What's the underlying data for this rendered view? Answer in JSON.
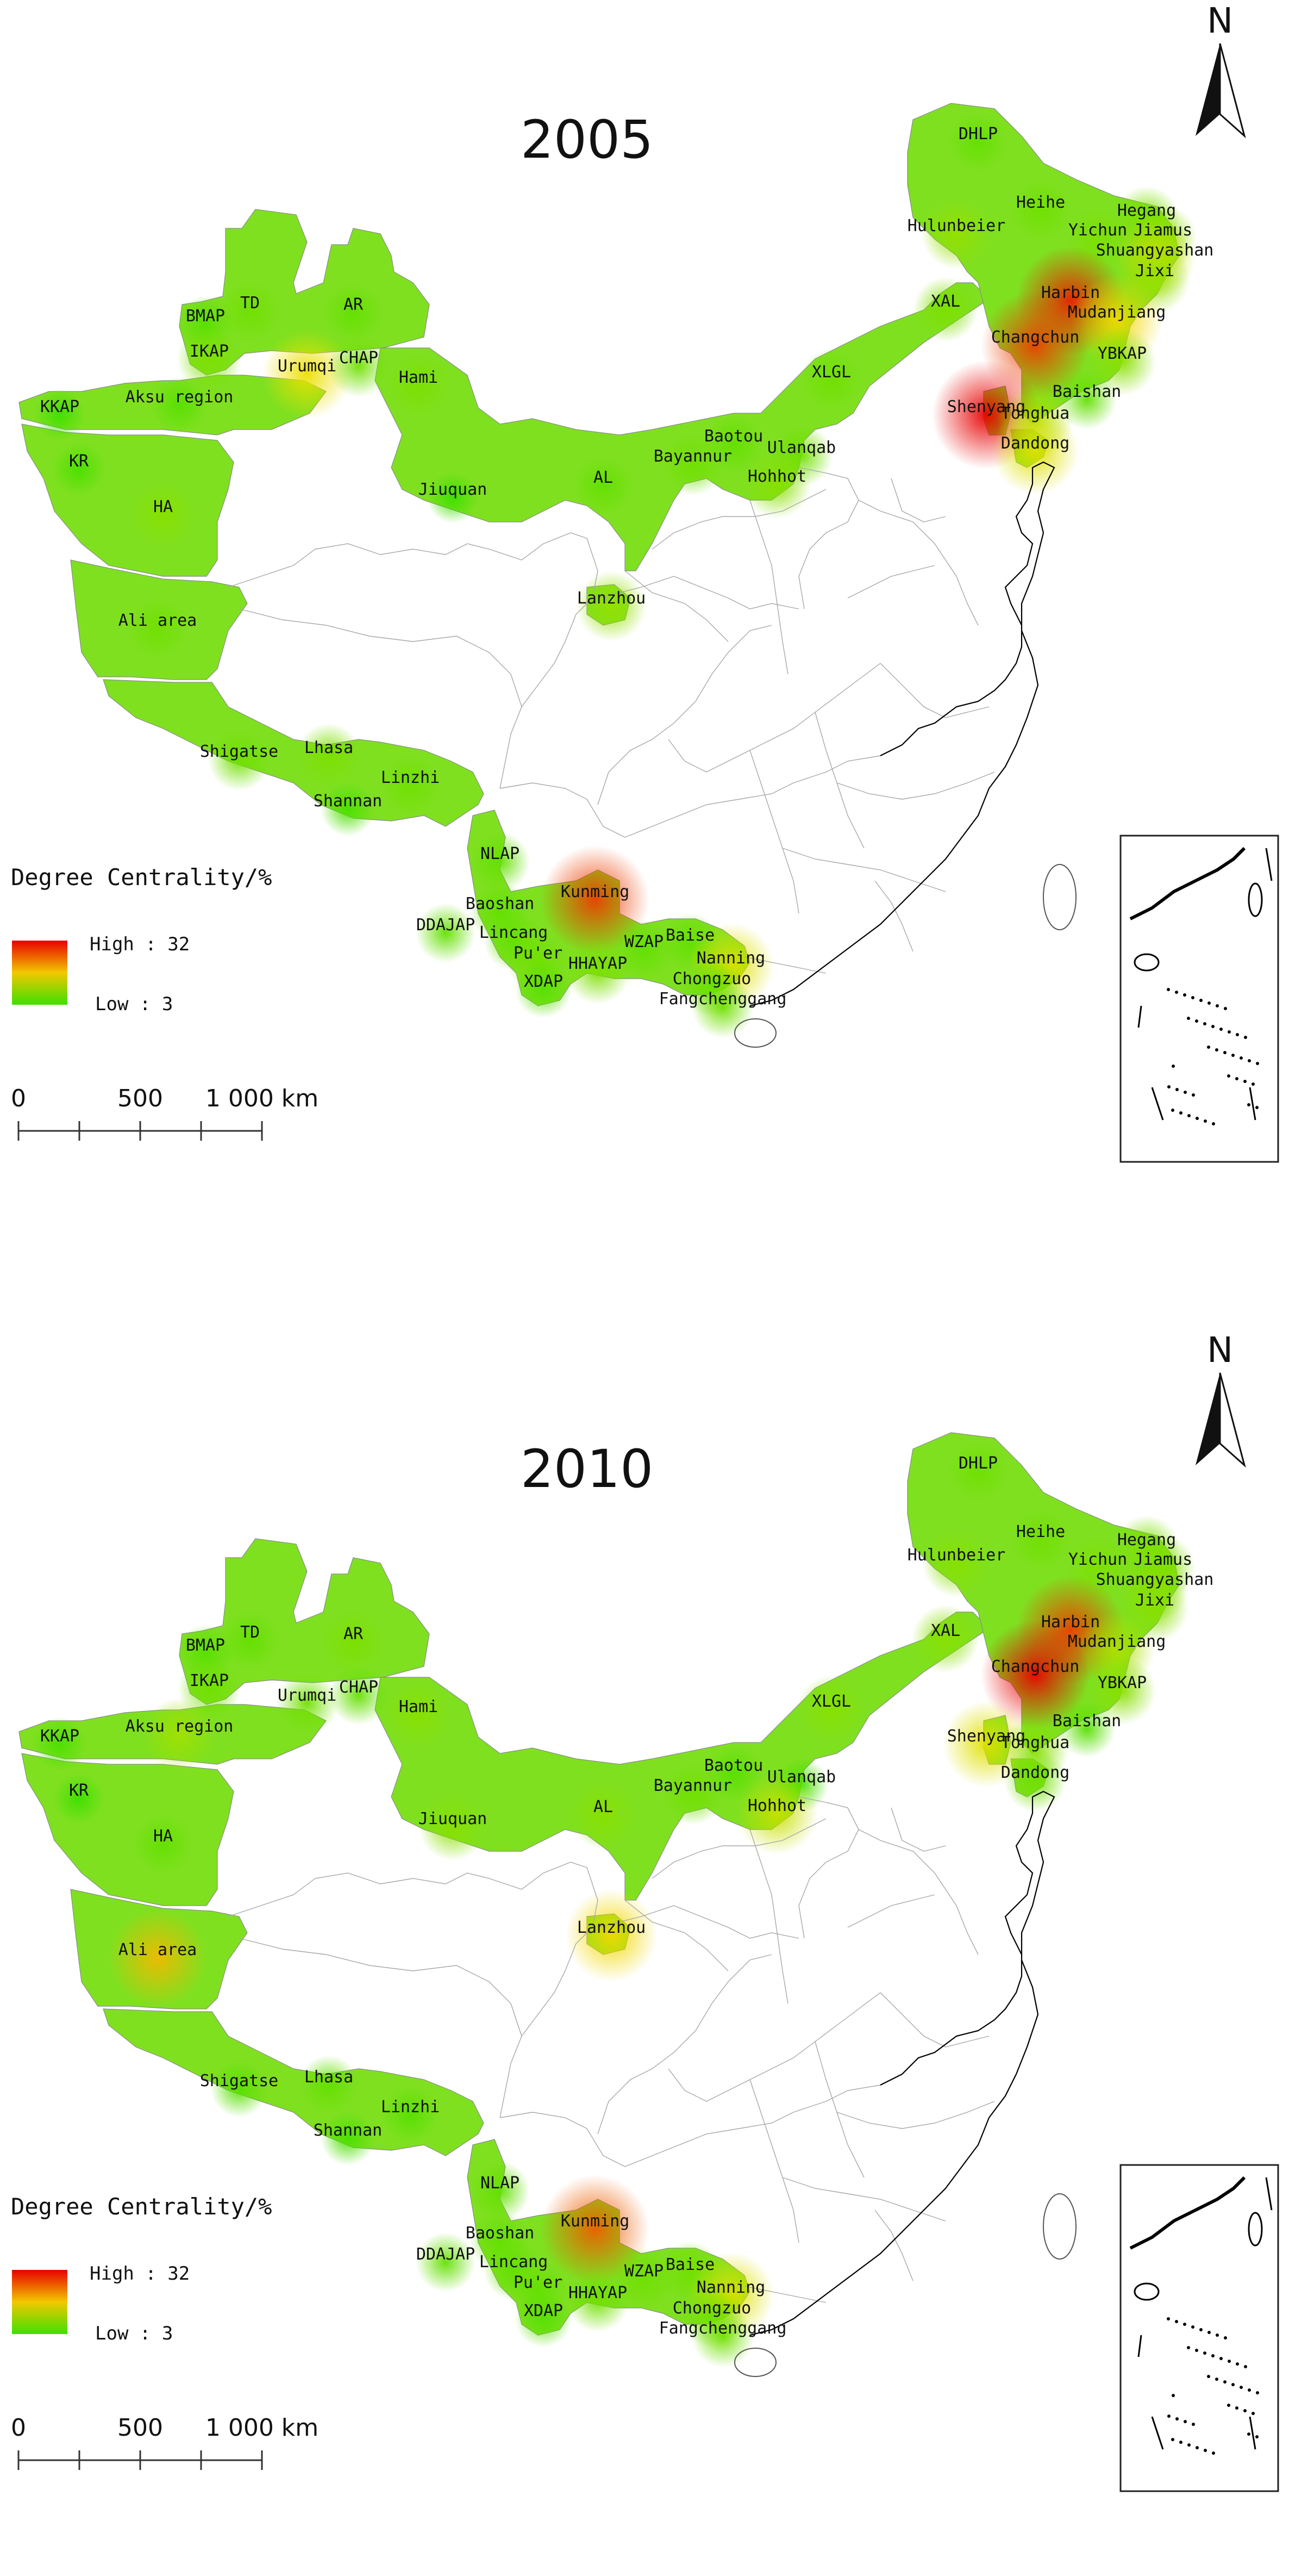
{
  "panels": [
    {
      "year": "2005",
      "legend": {
        "title": "Degree Centrality/%",
        "high": "High : 32",
        "low": "Low : 3"
      },
      "scale": {
        "labels": [
          "0",
          "500",
          "1 000 km"
        ]
      },
      "north": "N",
      "regions": [
        {
          "name": "DHLP",
          "value": 6
        },
        {
          "name": "Heihe",
          "value": 7
        },
        {
          "name": "Hegang",
          "value": 8
        },
        {
          "name": "Yichun",
          "value": 8
        },
        {
          "name": "Jiamus",
          "value": 9
        },
        {
          "name": "Shuangyashan",
          "value": 14
        },
        {
          "name": "Jixi",
          "value": 10
        },
        {
          "name": "Hulunbeier",
          "value": 10
        },
        {
          "name": "Harbin",
          "value": 30
        },
        {
          "name": "Mudanjiang",
          "value": 18
        },
        {
          "name": "XAL",
          "value": 8
        },
        {
          "name": "Changchun",
          "value": 28
        },
        {
          "name": "YBKAP",
          "value": 9
        },
        {
          "name": "Shenyang",
          "value": 32
        },
        {
          "name": "Tonghua",
          "value": 12
        },
        {
          "name": "Baishan",
          "value": 6
        },
        {
          "name": "Dandong",
          "value": 16
        },
        {
          "name": "XLGL",
          "value": 7
        },
        {
          "name": "Baotou",
          "value": 6
        },
        {
          "name": "Ulanqab",
          "value": 7
        },
        {
          "name": "Bayannur",
          "value": 7
        },
        {
          "name": "Hohhot",
          "value": 9
        },
        {
          "name": "AL",
          "value": 6
        },
        {
          "name": "Jiuquan",
          "value": 3
        },
        {
          "name": "Lanzhou",
          "value": 10
        },
        {
          "name": "Hami",
          "value": 8
        },
        {
          "name": "TD",
          "value": 7
        },
        {
          "name": "AR",
          "value": 6
        },
        {
          "name": "BMAP",
          "value": 5
        },
        {
          "name": "IKAP",
          "value": 8
        },
        {
          "name": "Urumqi",
          "value": 17
        },
        {
          "name": "CHAP",
          "value": 7
        },
        {
          "name": "KKAP",
          "value": 3
        },
        {
          "name": "Aksu region",
          "value": 5
        },
        {
          "name": "KR",
          "value": 4
        },
        {
          "name": "HA",
          "value": 9
        },
        {
          "name": "Ali area",
          "value": 7
        },
        {
          "name": "Shigatse",
          "value": 7
        },
        {
          "name": "Lhasa",
          "value": 8
        },
        {
          "name": "Linzhi",
          "value": 7
        },
        {
          "name": "Shannan",
          "value": 4
        },
        {
          "name": "NLAP",
          "value": 6
        },
        {
          "name": "Baoshan",
          "value": 6
        },
        {
          "name": "DDAJAP",
          "value": 6
        },
        {
          "name": "Lincang",
          "value": 6
        },
        {
          "name": "Pu'er",
          "value": 7
        },
        {
          "name": "XDAP",
          "value": 5
        },
        {
          "name": "Kunming",
          "value": 28
        },
        {
          "name": "HHAYAP",
          "value": 8
        },
        {
          "name": "WZAP",
          "value": 6
        },
        {
          "name": "Baise",
          "value": 6
        },
        {
          "name": "Nanning",
          "value": 16
        },
        {
          "name": "Chongzuo",
          "value": 6
        },
        {
          "name": "Fangchenggang",
          "value": 7
        }
      ]
    },
    {
      "year": "2010",
      "legend": {
        "title": "Degree Centrality/%",
        "high": "High : 32",
        "low": "Low : 3"
      },
      "scale": {
        "labels": [
          "0",
          "500",
          "1 000 km"
        ]
      },
      "north": "N",
      "regions": [
        {
          "name": "DHLP",
          "value": 7
        },
        {
          "name": "Heihe",
          "value": 7
        },
        {
          "name": "Hegang",
          "value": 8
        },
        {
          "name": "Yichun",
          "value": 8
        },
        {
          "name": "Jiamus",
          "value": 8
        },
        {
          "name": "Shuangyashan",
          "value": 9
        },
        {
          "name": "Jixi",
          "value": 9
        },
        {
          "name": "Hulunbeier",
          "value": 9
        },
        {
          "name": "Harbin",
          "value": 28
        },
        {
          "name": "Mudanjiang",
          "value": 12
        },
        {
          "name": "XAL",
          "value": 9
        },
        {
          "name": "Changchun",
          "value": 32
        },
        {
          "name": "YBKAP",
          "value": 9
        },
        {
          "name": "Shenyang",
          "value": 16
        },
        {
          "name": "Tonghua",
          "value": 9
        },
        {
          "name": "Baishan",
          "value": 5
        },
        {
          "name": "Dandong",
          "value": 7
        },
        {
          "name": "XLGL",
          "value": 9
        },
        {
          "name": "Baotou",
          "value": 5
        },
        {
          "name": "Ulanqab",
          "value": 4
        },
        {
          "name": "Bayannur",
          "value": 7
        },
        {
          "name": "Hohhot",
          "value": 14
        },
        {
          "name": "AL",
          "value": 9
        },
        {
          "name": "Jiuquan",
          "value": 9
        },
        {
          "name": "Lanzhou",
          "value": 18
        },
        {
          "name": "Hami",
          "value": 9
        },
        {
          "name": "TD",
          "value": 6
        },
        {
          "name": "AR",
          "value": 8
        },
        {
          "name": "BMAP",
          "value": 5
        },
        {
          "name": "IKAP",
          "value": 7
        },
        {
          "name": "Urumqi",
          "value": 7
        },
        {
          "name": "CHAP",
          "value": 6
        },
        {
          "name": "KKAP",
          "value": 4
        },
        {
          "name": "Aksu region",
          "value": 11
        },
        {
          "name": "KR",
          "value": 3
        },
        {
          "name": "HA",
          "value": 6
        },
        {
          "name": "Ali area",
          "value": 20
        },
        {
          "name": "Shigatse",
          "value": 5
        },
        {
          "name": "Lhasa",
          "value": 6
        },
        {
          "name": "Linzhi",
          "value": 5
        },
        {
          "name": "Shannan",
          "value": 4
        },
        {
          "name": "NLAP",
          "value": 6
        },
        {
          "name": "Baoshan",
          "value": 6
        },
        {
          "name": "DDAJAP",
          "value": 6
        },
        {
          "name": "Lincang",
          "value": 6
        },
        {
          "name": "Pu'er",
          "value": 6
        },
        {
          "name": "XDAP",
          "value": 5
        },
        {
          "name": "Kunming",
          "value": 26
        },
        {
          "name": "HHAYAP",
          "value": 7
        },
        {
          "name": "WZAP",
          "value": 7
        },
        {
          "name": "Baise",
          "value": 7
        },
        {
          "name": "Nanning",
          "value": 16
        },
        {
          "name": "Chongzuo",
          "value": 7
        },
        {
          "name": "Fangchenggang",
          "value": 7
        }
      ]
    }
  ],
  "colors": {
    "high": "#e80000",
    "mid": "#f2e000",
    "low": "#3ee000",
    "outline": "#a0a0a0",
    "coast": "#000000"
  }
}
